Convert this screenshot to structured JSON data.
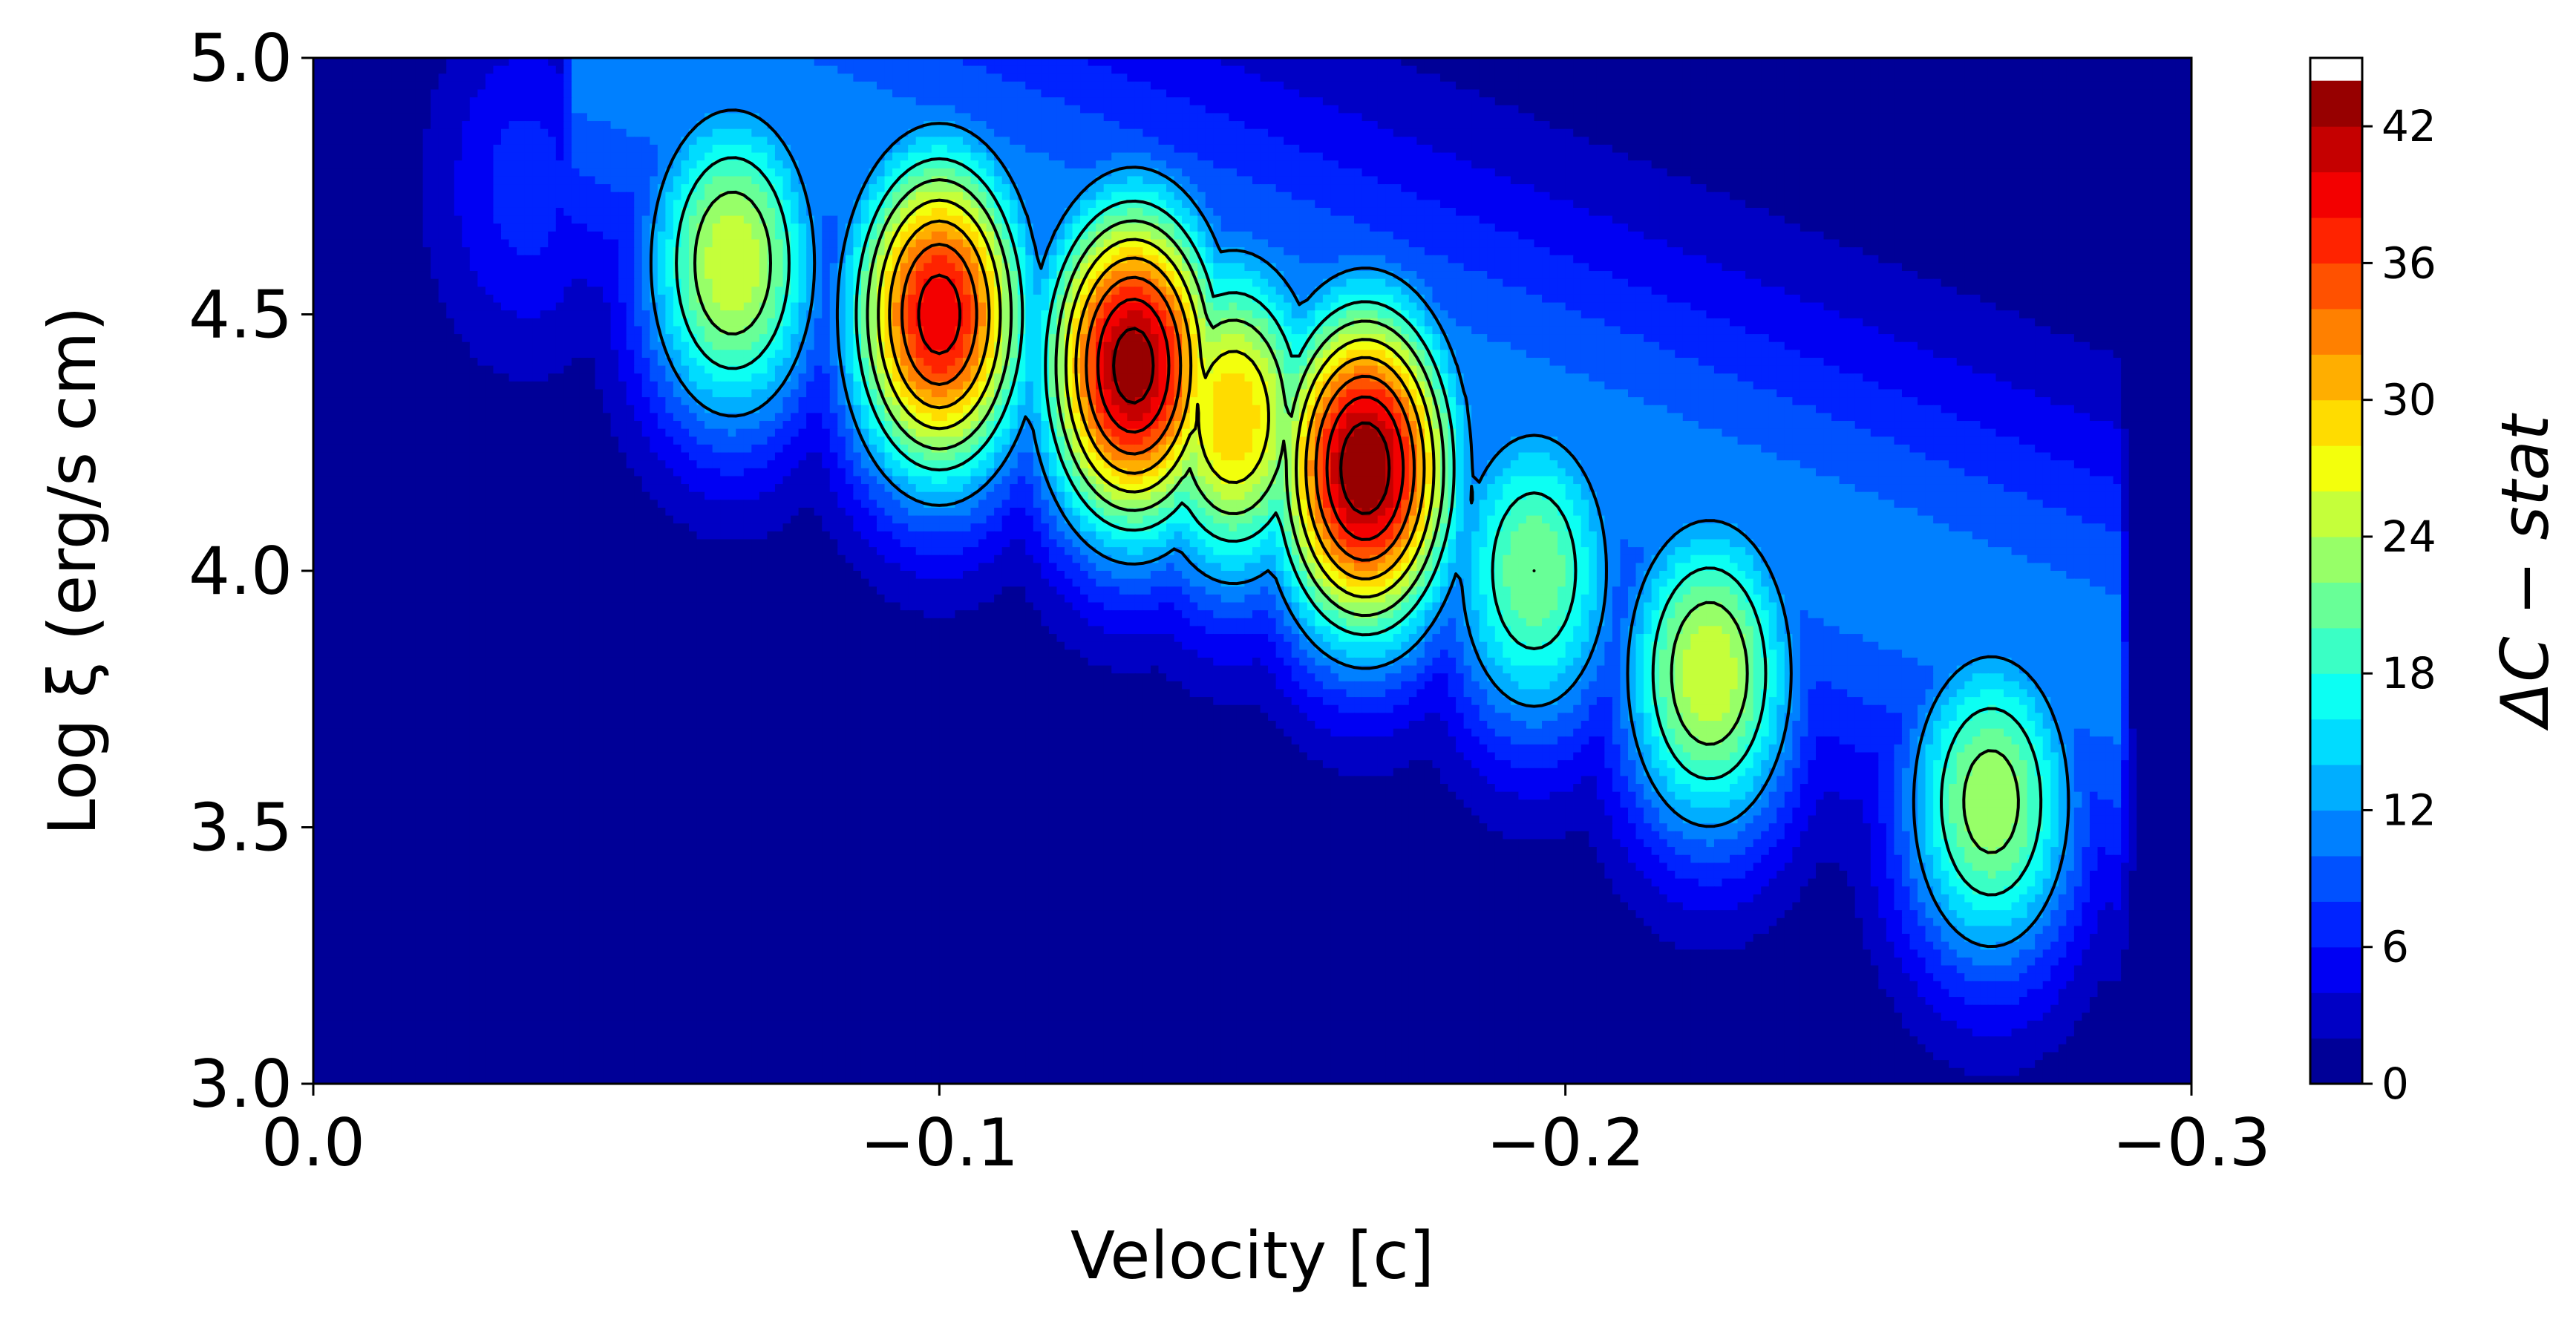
{
  "chart_data": {
    "type": "heatmap",
    "subtype": "filled-contour",
    "title": "",
    "xlabel": "Velocity [c]",
    "ylabel": "Log ξ (erg/s cm)",
    "xlim": [
      0.0,
      -0.3
    ],
    "ylim": [
      3.0,
      5.0
    ],
    "x_ticks": [
      0.0,
      -0.1,
      -0.2,
      -0.3
    ],
    "x_tick_labels": [
      "0.0",
      "−0.1",
      "−0.2",
      "−0.3"
    ],
    "y_ticks": [
      3.0,
      3.5,
      4.0,
      4.5,
      5.0
    ],
    "y_tick_labels": [
      "3.0",
      "3.5",
      "4.0",
      "4.5",
      "5.0"
    ],
    "colormap": "jet",
    "colorbar": {
      "label": "ΔC − stat",
      "range": [
        0,
        45
      ],
      "level_step": 2,
      "ticks": [
        0,
        6,
        12,
        18,
        24,
        30,
        36,
        42
      ],
      "tick_labels": [
        "0",
        "6",
        "12",
        "18",
        "24",
        "30",
        "36",
        "42"
      ]
    },
    "contour_lines": "black",
    "peaks": [
      {
        "velocity": -0.034,
        "log_xi": 4.75,
        "delta_c": 7
      },
      {
        "velocity": -0.067,
        "log_xi": 4.6,
        "delta_c": 26
      },
      {
        "velocity": -0.1,
        "log_xi": 4.5,
        "delta_c": 40
      },
      {
        "velocity": -0.131,
        "log_xi": 4.4,
        "delta_c": 44
      },
      {
        "velocity": -0.147,
        "log_xi": 4.3,
        "delta_c": 30
      },
      {
        "velocity": -0.168,
        "log_xi": 4.2,
        "delta_c": 45
      },
      {
        "velocity": -0.195,
        "log_xi": 4.0,
        "delta_c": 22
      },
      {
        "velocity": -0.223,
        "log_xi": 3.8,
        "delta_c": 26
      },
      {
        "velocity": -0.268,
        "log_xi": 3.55,
        "delta_c": 24
      }
    ]
  }
}
